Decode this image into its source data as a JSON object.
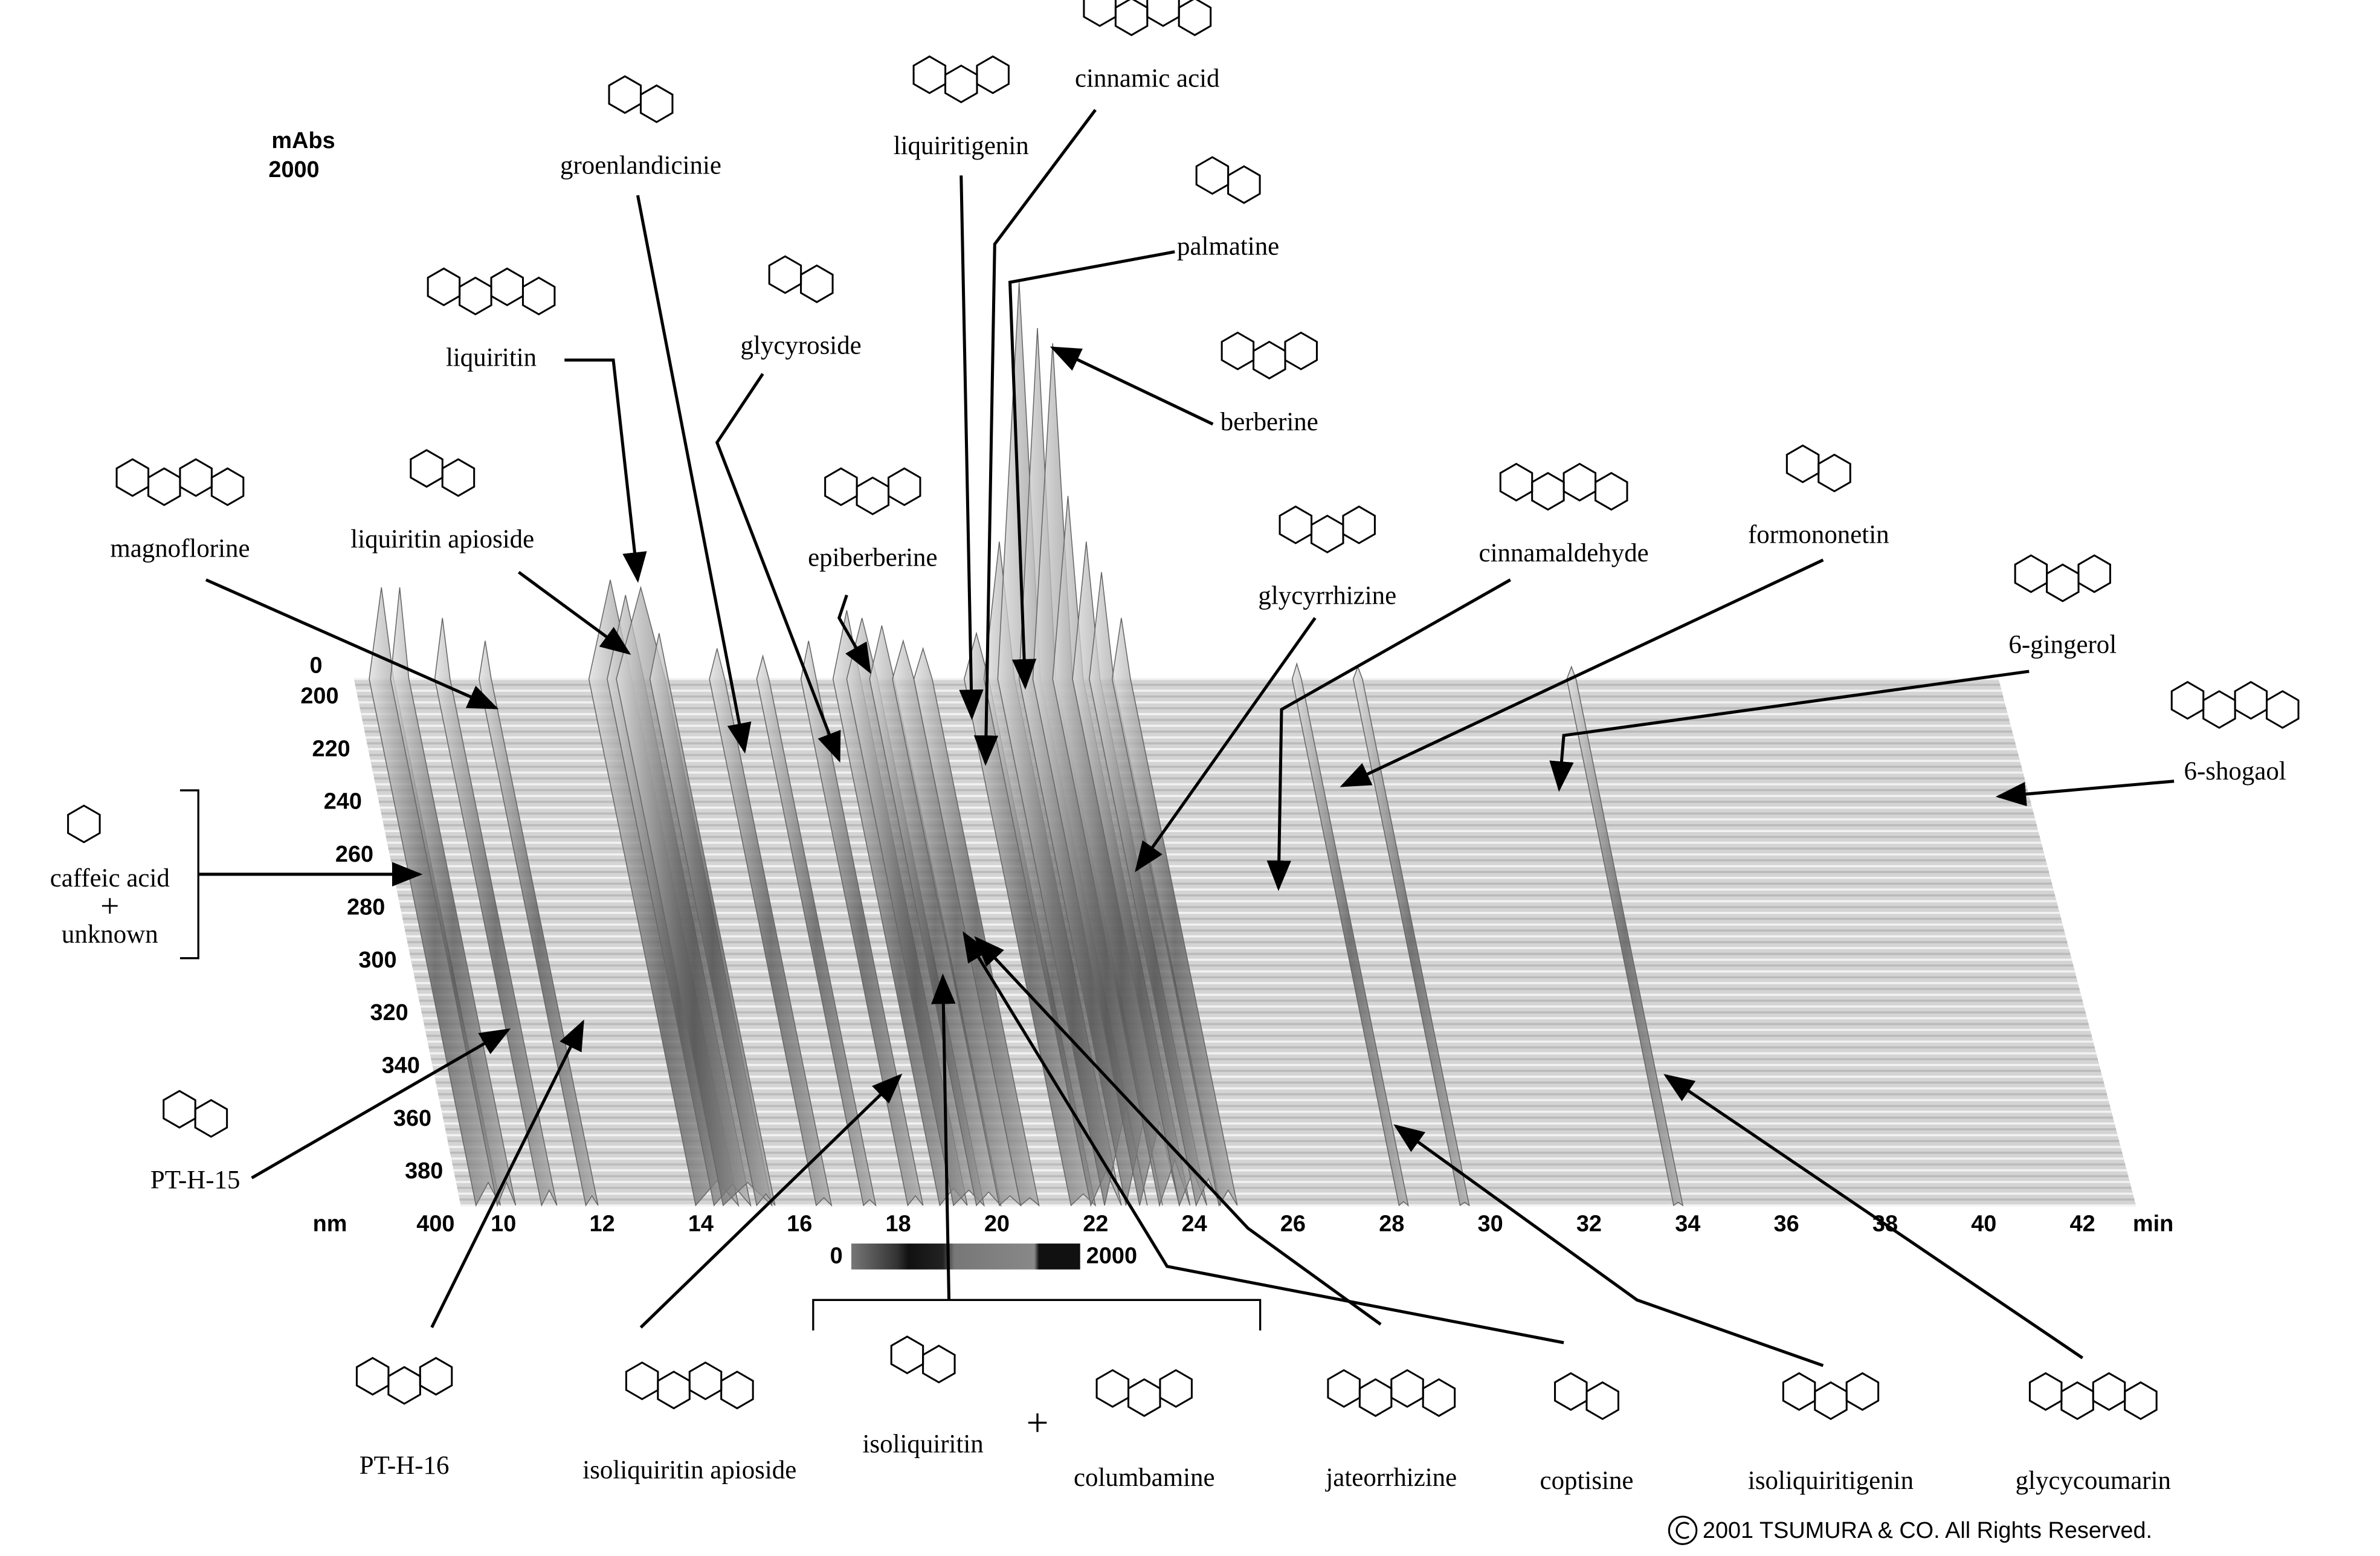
{
  "chart_data": {
    "type": "waterfall",
    "absorbance_axis": {
      "label": "mAbs",
      "max": 2000,
      "zero": 0
    },
    "wavelength_axis": {
      "label": "nm",
      "ticks": [
        200,
        220,
        240,
        260,
        280,
        300,
        320,
        340,
        360,
        380,
        400
      ]
    },
    "time_axis": {
      "label": "min",
      "ticks": [
        10,
        12,
        14,
        16,
        18,
        20,
        22,
        24,
        26,
        28,
        30,
        32,
        34,
        36,
        38,
        40,
        42
      ]
    },
    "color_scale": {
      "min": 0,
      "max": 2000
    },
    "compounds": [
      "groenlandicinie",
      "liquiritigenin",
      "cinnamic acid",
      "palmatine",
      "berberine",
      "liquiritin",
      "glycyroside",
      "epiberberine",
      "magnoflorine",
      "liquiritin apioside",
      "glycyrrhizine",
      "cinnamaldehyde",
      "formononetin",
      "6-gingerol",
      "6-shogaol",
      "PT-H-15",
      "PT-H-16",
      "isoliquiritin apioside",
      "isoliquiritin",
      "columbamine",
      "jateorrhizine",
      "coptisine",
      "isoliquiritigenin",
      "glycycoumarin"
    ],
    "bracket_left": {
      "lines": [
        "caffeic acid",
        "+",
        "unknown"
      ]
    },
    "bracket_bottom": {
      "plus": "+"
    },
    "copyright": "2001 TSUMURA & CO. All Rights Reserved."
  }
}
